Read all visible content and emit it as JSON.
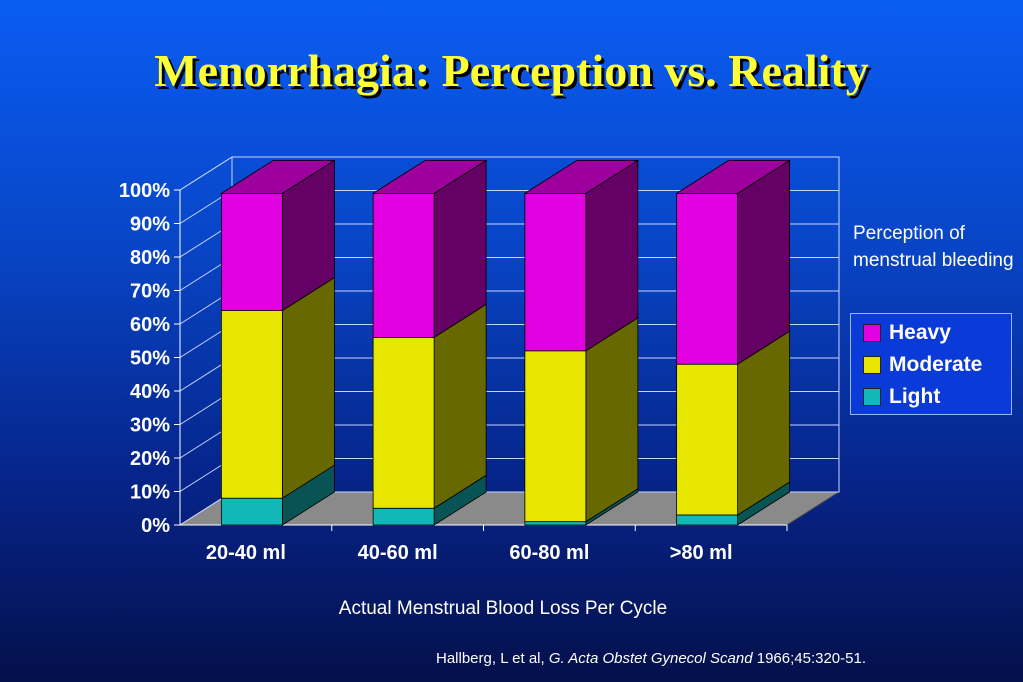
{
  "slide": {
    "title": "Menorrhagia: Perception vs. Reality",
    "side_note": "Perception of menstrual bleeding",
    "citation_authors": "Hallberg, L et al,",
    "citation_journal": "G. Acta Obstet Gynecol Scand",
    "citation_ref": "1966;45:320-51."
  },
  "chart_data": {
    "type": "bar",
    "stacked": true,
    "three_d": true,
    "categories": [
      "20-40 ml",
      "40-60 ml",
      "60-80 ml",
      ">80 ml"
    ],
    "series": [
      {
        "name": "Light",
        "color": "#12b8b8",
        "values": [
          8,
          5,
          1,
          3
        ]
      },
      {
        "name": "Moderate",
        "color": "#e6e600",
        "values": [
          56,
          51,
          51,
          45
        ]
      },
      {
        "name": "Heavy",
        "color": "#e000e0",
        "values": [
          35,
          43,
          47,
          51
        ]
      }
    ],
    "xlabel": "Actual Menstrual Blood Loss Per Cycle",
    "ylabel": "",
    "ylim": [
      0,
      100
    ],
    "yticks": [
      "0%",
      "10%",
      "20%",
      "30%",
      "40%",
      "50%",
      "60%",
      "70%",
      "80%",
      "90%",
      "100%"
    ],
    "grid": true,
    "legend": {
      "position": "right",
      "order": [
        "Heavy",
        "Moderate",
        "Light"
      ]
    }
  }
}
